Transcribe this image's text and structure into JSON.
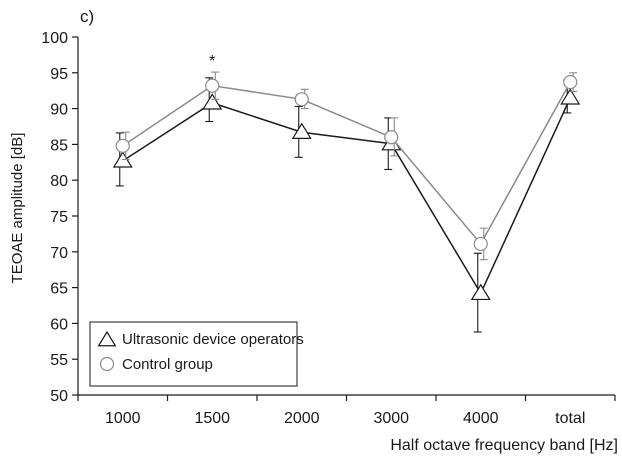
{
  "chart_data": {
    "type": "line",
    "panel_label": "c)",
    "title": "",
    "xlabel": "Half octave frequency band [Hz]",
    "ylabel": "TEOAE amplitude [dB]",
    "categories": [
      "1000",
      "1500",
      "2000",
      "3000",
      "4000",
      "total"
    ],
    "ylim": [
      50,
      100
    ],
    "yticks": [
      50,
      55,
      60,
      65,
      70,
      75,
      80,
      85,
      90,
      95,
      100
    ],
    "grid": false,
    "legend_position": "bottom-left",
    "annotations": [
      {
        "category": "1500",
        "text": "*"
      }
    ],
    "series": [
      {
        "name": "Ultrasonic device operators",
        "marker": "triangle",
        "color": "#1a1a1a",
        "values": [
          82.7,
          90.8,
          86.7,
          85.1,
          64.2,
          91.5
        ],
        "error_plus": [
          3.9,
          3.5,
          3.6,
          3.6,
          5.6,
          2.5
        ],
        "error_minus": [
          3.5,
          2.6,
          3.5,
          3.6,
          5.4,
          2.1
        ],
        "error_side": "left"
      },
      {
        "name": "Control group",
        "marker": "circle",
        "color": "#8a8a8a",
        "values": [
          84.8,
          93.2,
          91.3,
          86.0,
          71.1,
          93.7
        ],
        "error_plus": [
          1.9,
          1.9,
          1.4,
          2.7,
          2.2,
          1.3
        ],
        "error_minus": [
          1.9,
          1.9,
          1.3,
          2.6,
          2.2,
          1.3
        ],
        "error_side": "right"
      }
    ]
  }
}
